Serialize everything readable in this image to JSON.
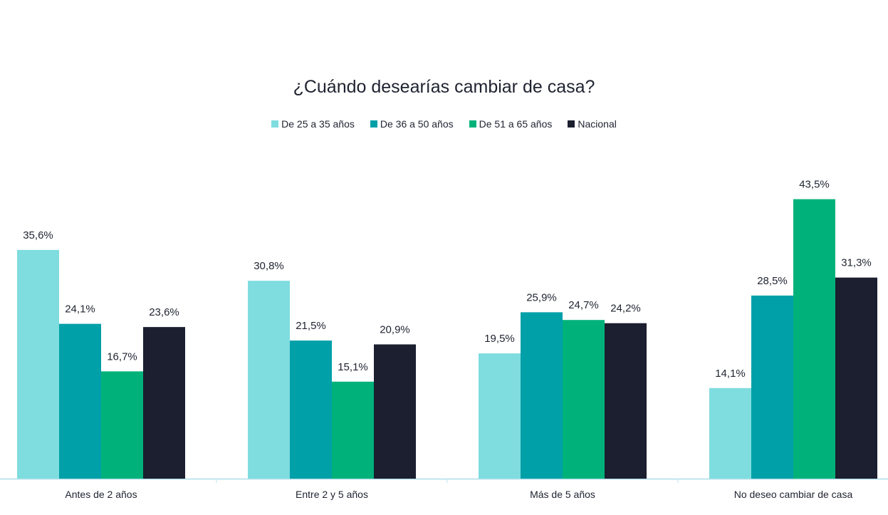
{
  "chart_data": {
    "type": "bar",
    "title": "¿Cuándo desearías cambiar de casa?",
    "categories": [
      "Antes de 2 años",
      "Entre 2 y 5 años",
      "Más de 5 años",
      "No deseo cambiar de casa"
    ],
    "series": [
      {
        "name": "De 25 a 35 años",
        "color": "#7fdcdf",
        "values": [
          35.6,
          30.8,
          19.5,
          14.1
        ],
        "labels": [
          "35,6%",
          "30,8%",
          "19,5%",
          "14,1%"
        ]
      },
      {
        "name": "De 36 a 50 años",
        "color": "#00a0a8",
        "values": [
          24.1,
          21.5,
          25.9,
          28.5
        ],
        "labels": [
          "24,1%",
          "21,5%",
          "25,9%",
          "28,5%"
        ]
      },
      {
        "name": "De 51 a 65 años",
        "color": "#00b27a",
        "values": [
          16.7,
          15.1,
          24.7,
          43.5
        ],
        "labels": [
          "16,7%",
          "15,1%",
          "24,7%",
          "43,5%"
        ]
      },
      {
        "name": "Nacional",
        "color": "#1b1f2f",
        "values": [
          23.6,
          20.9,
          24.2,
          31.3
        ],
        "labels": [
          "23,6%",
          "20,9%",
          "24,2%",
          "31,3%"
        ]
      }
    ],
    "xlabel": "",
    "ylabel": "",
    "ylim": [
      0,
      45
    ],
    "grid": false,
    "legend": "top-center",
    "axis_color": "#bfe3ee"
  }
}
